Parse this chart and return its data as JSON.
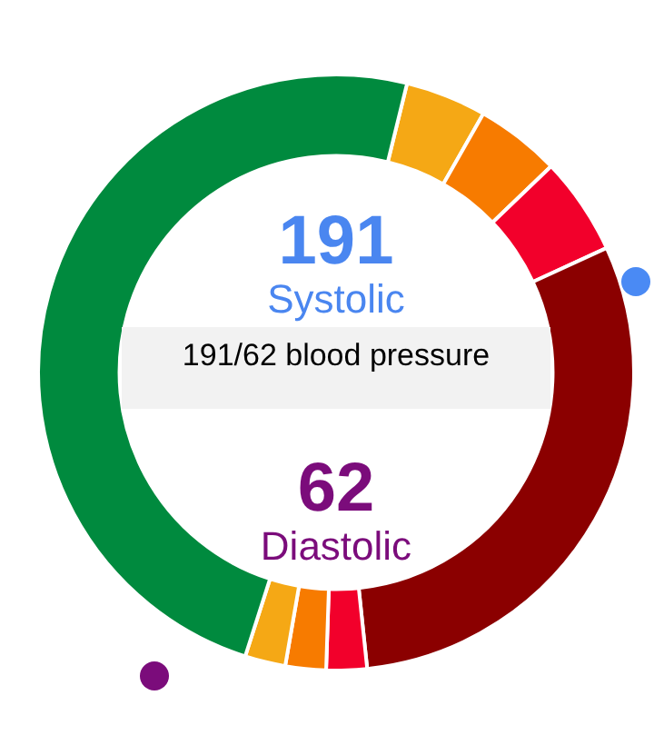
{
  "chart_data": {
    "type": "donut",
    "categories": [
      null,
      null,
      null,
      null,
      null,
      null,
      null,
      null
    ],
    "values": [
      4.4,
      4.6,
      5.3,
      30.2,
      2.2,
      2.2,
      2.2,
      48.9
    ],
    "colors": [
      "#f5a815",
      "#f77b00",
      "#f2002b",
      "#8b0000",
      "#f2002b",
      "#f77b00",
      "#f5a815",
      "#008a3e"
    ],
    "annotations": [
      "191",
      "Systolic",
      "191/62 blood pressure",
      "62",
      "Diastolic"
    ],
    "legend": false
  }
}
